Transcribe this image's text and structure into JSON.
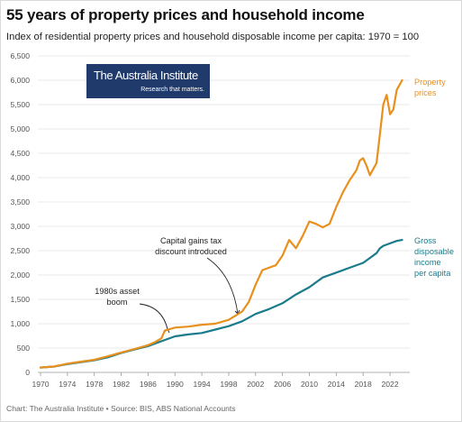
{
  "title": "55 years of property prices and household income",
  "subtitle": "Index of residential property prices and household disposable income per capita: 1970 = 100",
  "footer": "Chart: The Australia Institute • Source: BIS, ABS National Accounts",
  "logo": {
    "name": "The Australia Institute",
    "tagline": "Research that matters."
  },
  "annotations": {
    "boom": [
      "1980s asset",
      "boom"
    ],
    "cgt": [
      "Capital gains tax",
      "discount introduced"
    ]
  },
  "colors": {
    "property": "#e8901d",
    "income": "#1a7b8c",
    "grid": "#e3e3e3",
    "logo_bg": "#1f3a6b"
  },
  "chart_data": {
    "type": "line",
    "title": "55 years of property prices and household income",
    "subtitle": "Index of residential property prices and household disposable income per capita: 1970 = 100",
    "xlabel": "",
    "ylabel": "",
    "xlim": [
      1970,
      2024
    ],
    "ylim": [
      0,
      6500
    ],
    "y_ticks": [
      0,
      500,
      1000,
      1500,
      2000,
      2500,
      3000,
      3500,
      4000,
      4500,
      5000,
      5500,
      6000,
      6500
    ],
    "y_tick_labels": [
      "0",
      "500",
      "1,000",
      "1,500",
      "2,000",
      "2,500",
      "3,000",
      "3,500",
      "4,000",
      "4,500",
      "5,000",
      "5,500",
      "6,000",
      "6,500"
    ],
    "x_ticks": [
      1970,
      1974,
      1978,
      1982,
      1986,
      1990,
      1994,
      1998,
      2002,
      2006,
      2010,
      2014,
      2018,
      2022
    ],
    "x_tick_labels": [
      "1970",
      "1974",
      "1978",
      "1982",
      "1986",
      "1990",
      "1994",
      "1998",
      "2002",
      "2006",
      "2010",
      "2014",
      "2018",
      "2022"
    ],
    "grid": true,
    "series": [
      {
        "name": "Property prices",
        "label_lines": [
          "Property",
          "prices"
        ],
        "color": "#e8901d",
        "x": [
          1970,
          1972,
          1974,
          1976,
          1978,
          1980,
          1982,
          1984,
          1986,
          1987,
          1988,
          1988.5,
          1989,
          1990,
          1992,
          1994,
          1996,
          1998,
          2000,
          2001,
          2002,
          2003,
          2004,
          2005,
          2006,
          2007,
          2008,
          2009,
          2010,
          2011,
          2012,
          2013,
          2014,
          2015,
          2016,
          2017,
          2017.5,
          2018,
          2018.5,
          2019,
          2020,
          2020.5,
          2021,
          2021.5,
          2022,
          2022.5,
          2023,
          2023.8
        ],
        "values": [
          100,
          120,
          180,
          220,
          260,
          330,
          410,
          480,
          560,
          620,
          700,
          860,
          880,
          920,
          940,
          980,
          1000,
          1080,
          1250,
          1450,
          1800,
          2100,
          2150,
          2200,
          2400,
          2720,
          2550,
          2800,
          3100,
          3050,
          2980,
          3050,
          3400,
          3700,
          3950,
          4150,
          4350,
          4400,
          4250,
          4050,
          4300,
          4900,
          5500,
          5700,
          5300,
          5400,
          5800,
          6000
        ]
      },
      {
        "name": "Gross disposable income per capita",
        "label_lines": [
          "Gross",
          "disposable",
          "income",
          "per capita"
        ],
        "color": "#1a7b8c",
        "x": [
          1970,
          1972,
          1974,
          1976,
          1978,
          1980,
          1982,
          1984,
          1986,
          1988,
          1990,
          1992,
          1994,
          1996,
          1998,
          2000,
          2002,
          2004,
          2006,
          2008,
          2010,
          2012,
          2014,
          2016,
          2018,
          2019,
          2020,
          2020.5,
          2021,
          2022,
          2023,
          2023.8
        ],
        "values": [
          100,
          120,
          170,
          210,
          250,
          310,
          400,
          470,
          540,
          640,
          740,
          780,
          810,
          880,
          950,
          1050,
          1200,
          1300,
          1420,
          1600,
          1750,
          1950,
          2050,
          2150,
          2250,
          2350,
          2450,
          2550,
          2600,
          2650,
          2700,
          2720
        ]
      }
    ]
  }
}
